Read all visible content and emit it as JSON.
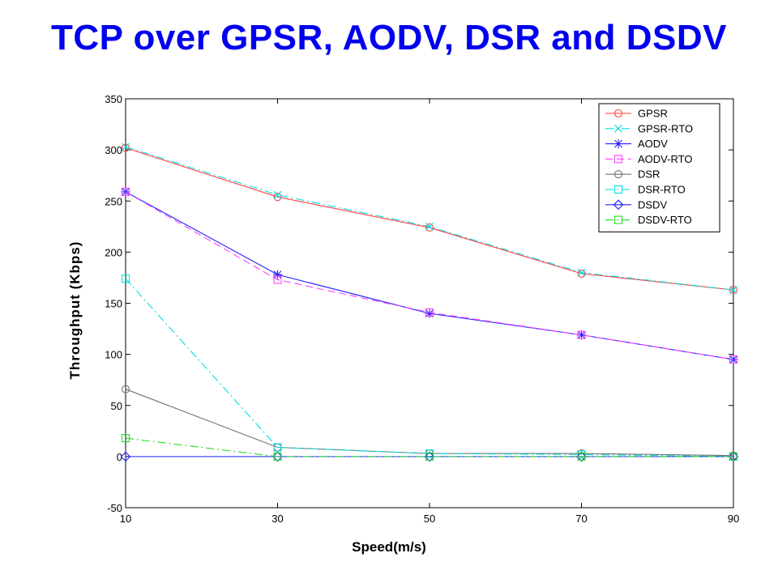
{
  "chart_data": {
    "type": "line",
    "title": "TCP over GPSR, AODV, DSR and DSDV",
    "xlabel": "Speed(m/s)",
    "ylabel": "Throughput (Kbps)",
    "x": [
      10,
      30,
      50,
      70,
      90
    ],
    "xlim": [
      10,
      90
    ],
    "ylim": [
      -50,
      350
    ],
    "xticks": [
      10,
      30,
      50,
      70,
      90
    ],
    "yticks": [
      -50,
      0,
      50,
      100,
      150,
      200,
      250,
      300,
      350
    ],
    "grid": false,
    "legend_position": "top-right",
    "series": [
      {
        "name": "GPSR",
        "values": [
          302,
          254,
          224,
          179,
          163
        ],
        "color": "#ff4040",
        "marker": "circle",
        "dash": "solid"
      },
      {
        "name": "GPSR-RTO",
        "values": [
          303,
          256,
          225,
          180,
          163
        ],
        "color": "#00e0e0",
        "marker": "x",
        "dash": "dashdot"
      },
      {
        "name": "AODV",
        "values": [
          259,
          178,
          140,
          119,
          95
        ],
        "color": "#2020ff",
        "marker": "star",
        "dash": "solid"
      },
      {
        "name": "AODV-RTO",
        "values": [
          259,
          173,
          141,
          119,
          95
        ],
        "color": "#ff40ff",
        "marker": "square",
        "dash": "dashed"
      },
      {
        "name": "DSR",
        "values": [
          66,
          9,
          3,
          3,
          1
        ],
        "color": "#707070",
        "marker": "circle",
        "dash": "solid"
      },
      {
        "name": "DSR-RTO",
        "values": [
          174,
          9,
          3,
          2,
          0
        ],
        "color": "#00e0e0",
        "marker": "square",
        "dash": "dashdot"
      },
      {
        "name": "DSDV",
        "values": [
          0,
          0,
          0,
          0,
          0
        ],
        "color": "#2020ff",
        "marker": "diamond",
        "dash": "solid"
      },
      {
        "name": "DSDV-RTO",
        "values": [
          18,
          0,
          0,
          0,
          0
        ],
        "color": "#20e020",
        "marker": "square",
        "dash": "dashdot"
      }
    ]
  }
}
